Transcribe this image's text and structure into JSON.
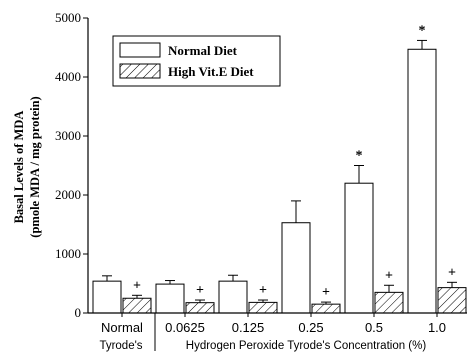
{
  "chart_data": {
    "type": "bar",
    "ylabel_line1": "Basal Levels of MDA",
    "ylabel_line2": "(pmole MDA / mg protein)",
    "ylim": [
      0,
      5000
    ],
    "yticks": [
      "0",
      "1000",
      "2000",
      "3000",
      "4000",
      "5000"
    ],
    "ytick_values": [
      0,
      1000,
      2000,
      3000,
      4000,
      5000
    ],
    "categories": [
      "Normal",
      "0.0625",
      "0.125",
      "0.25",
      "0.5",
      "1.0"
    ],
    "x_group_left": "Tyrode's",
    "x_group_right": "Hydrogen Peroxide Tyrode's Concentration (%)",
    "series": [
      {
        "name": "Normal Diet",
        "pattern": "open",
        "values": [
          540,
          490,
          540,
          1530,
          2200,
          4470
        ],
        "errors": [
          90,
          60,
          100,
          370,
          300,
          150
        ],
        "markers": [
          "",
          "",
          "",
          "",
          "*",
          "*"
        ]
      },
      {
        "name": "High Vit.E Diet",
        "pattern": "hatched",
        "values": [
          250,
          175,
          180,
          150,
          350,
          430
        ],
        "errors": [
          50,
          45,
          40,
          35,
          120,
          90
        ],
        "markers": [
          "+",
          "+",
          "+",
          "+",
          "+",
          "+"
        ]
      }
    ],
    "legend_position": "top-left"
  }
}
